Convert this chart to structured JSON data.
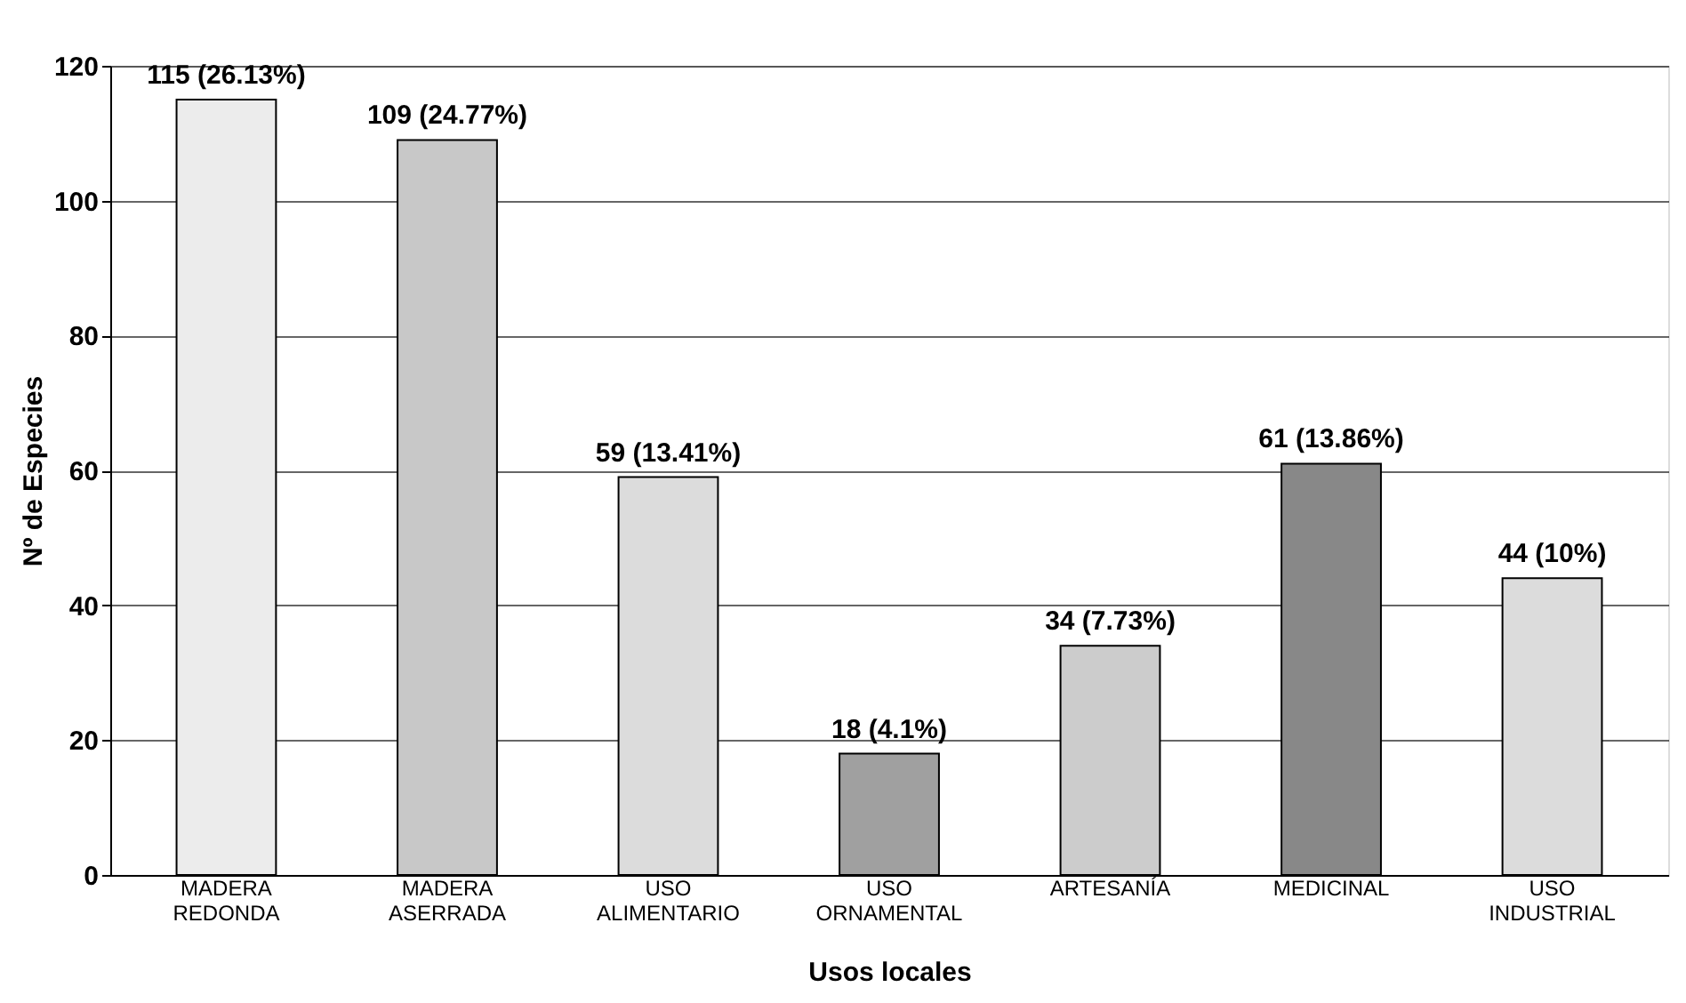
{
  "chart_data": {
    "type": "bar",
    "xlabel": "Usos locales",
    "ylabel": "Nº de Especies",
    "categories": [
      "MADERA REDONDA",
      "MADERA ASERRADA",
      "USO ALIMENTARIO",
      "USO ORNAMENTAL",
      "ARTESANÍA",
      "MEDICINAL",
      "USO INDUSTRIAL"
    ],
    "values": [
      115,
      109,
      59,
      18,
      34,
      61,
      44
    ],
    "colors": [
      "#ececec",
      "#c8c8c8",
      "#dcdcdc",
      "#a0a0a0",
      "#cccccc",
      "#888888",
      "#dcdcdc"
    ],
    "value_labels": [
      "115 (26.13%)",
      "109 (24.77%)",
      "59 (13.41%)",
      "18 (4.1%)",
      "34 (7.73%)",
      "61 (13.86%)",
      "44 (10%)"
    ],
    "ylim": [
      0,
      120
    ],
    "yticks": [
      0,
      20,
      40,
      60,
      80,
      100,
      120
    ],
    "grid": "y"
  }
}
